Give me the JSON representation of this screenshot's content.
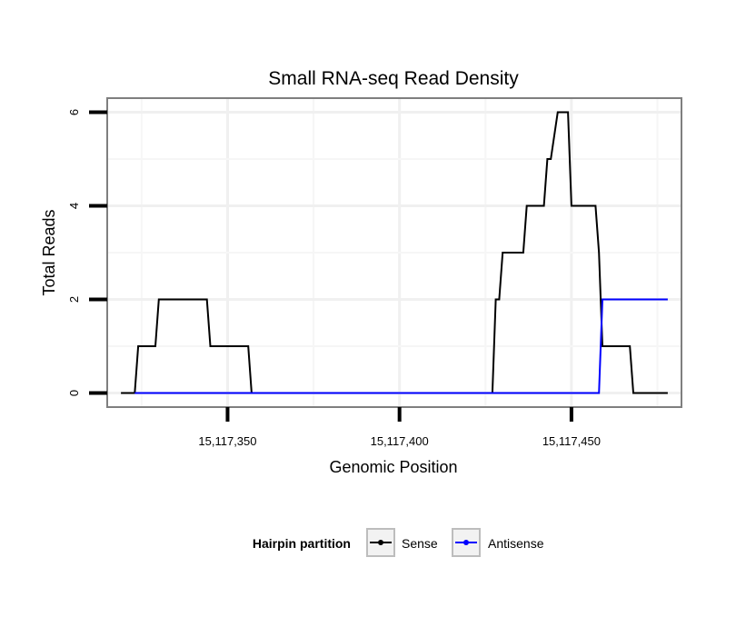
{
  "chart_data": {
    "type": "line",
    "title": "Small RNA-seq Read Density",
    "xlabel": "Genomic Position",
    "ylabel": "Total Reads",
    "xlim": [
      15117315,
      15117482
    ],
    "ylim": [
      -0.3,
      6.3
    ],
    "x_ticks": [
      15117350,
      15117400,
      15117450
    ],
    "x_tick_labels": [
      "15,117,350",
      "15,117,400",
      "15,117,450"
    ],
    "y_ticks": [
      0,
      2,
      4,
      6
    ],
    "y_tick_labels": [
      "0",
      "2",
      "4",
      "6"
    ],
    "x_grid_minor": [
      15117325,
      15117375,
      15117425,
      15117475
    ],
    "y_grid_minor": [
      1,
      3,
      5
    ],
    "grid": true,
    "legend": {
      "title": "Hairpin partition",
      "position": "bottom",
      "entries": [
        {
          "label": "Sense",
          "color": "#000000"
        },
        {
          "label": "Antisense",
          "color": "#0000ff"
        }
      ]
    },
    "series": [
      {
        "name": "Sense",
        "color": "#000000",
        "x": [
          15117319,
          15117323,
          15117324,
          15117329,
          15117330,
          15117331,
          15117344,
          15117345,
          15117356,
          15117357,
          15117427,
          15117428,
          15117429,
          15117430,
          15117436,
          15117437,
          15117442,
          15117443,
          15117444,
          15117446,
          15117449,
          15117450,
          15117457,
          15117458,
          15117459,
          15117467,
          15117468,
          15117478
        ],
        "y": [
          0,
          0,
          1,
          1,
          2,
          2,
          2,
          1,
          1,
          0,
          0,
          2,
          2,
          3,
          3,
          4,
          4,
          5,
          5,
          6,
          6,
          4,
          4,
          3,
          1,
          1,
          0,
          0
        ]
      },
      {
        "name": "Antisense",
        "color": "#0000ff",
        "x": [
          15117323,
          15117458,
          15117459,
          15117478
        ],
        "y": [
          0,
          0,
          2,
          2
        ]
      }
    ]
  }
}
